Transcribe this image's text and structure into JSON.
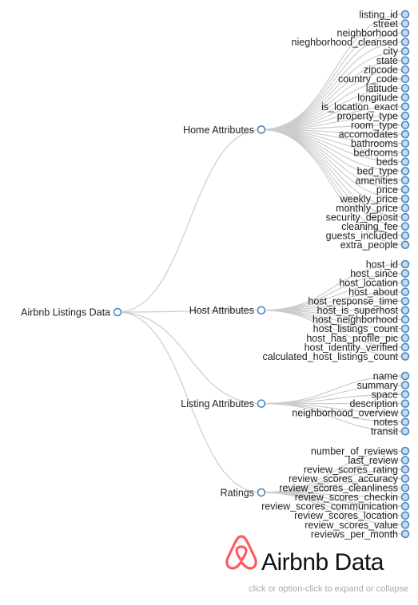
{
  "tree": {
    "root": "Airbnb Listings Data",
    "groups": [
      {
        "name": "Home Attributes",
        "children": [
          "listing_id",
          "street",
          "neighborhood",
          "nieghborhood_cleansed",
          "city",
          "state",
          "zipcode",
          "country_code",
          "latitude",
          "longitude",
          "is_location_exact",
          "property_type",
          "room_type",
          "accomodates",
          "bathrooms",
          "bedrooms",
          "beds",
          "bed_type",
          "amenities",
          "price",
          "weekly_price",
          "monthly_price",
          "security_deposit",
          "cleaning_fee",
          "guests_included",
          "extra_people"
        ]
      },
      {
        "name": "Host Attributes",
        "children": [
          "host_id",
          "host_since",
          "host_location",
          "host_about",
          "host_response_time",
          "host_is_superhost",
          "host_neighborhood",
          "host_listings_count",
          "host_has_profile_pic",
          "host_identity_verified",
          "calculated_host_listings_count"
        ]
      },
      {
        "name": "Listing Attributes",
        "children": [
          "name",
          "summary",
          "space",
          "description",
          "neighborhood_overview",
          "notes",
          "transit"
        ]
      },
      {
        "name": "Ratings",
        "children": [
          "number_of_reviews",
          "last_review",
          "review_scores_rating",
          "review_scores_accuracy",
          "review_scores_cleanliness",
          "review_scores_checkin",
          "review_scores_communication",
          "review_scores_location",
          "review_scores_value",
          "reviews_per_month"
        ]
      }
    ]
  },
  "brand": {
    "title": "Airbnb Data",
    "logo_icon": "airbnb-belo-icon",
    "logo_color": "#ff5a5f"
  },
  "hint": "click or option-click to expand or collapse",
  "colors": {
    "link": "#cccccc",
    "node_stroke": "#4682b4",
    "leaf_fill": "#c6dbef"
  }
}
